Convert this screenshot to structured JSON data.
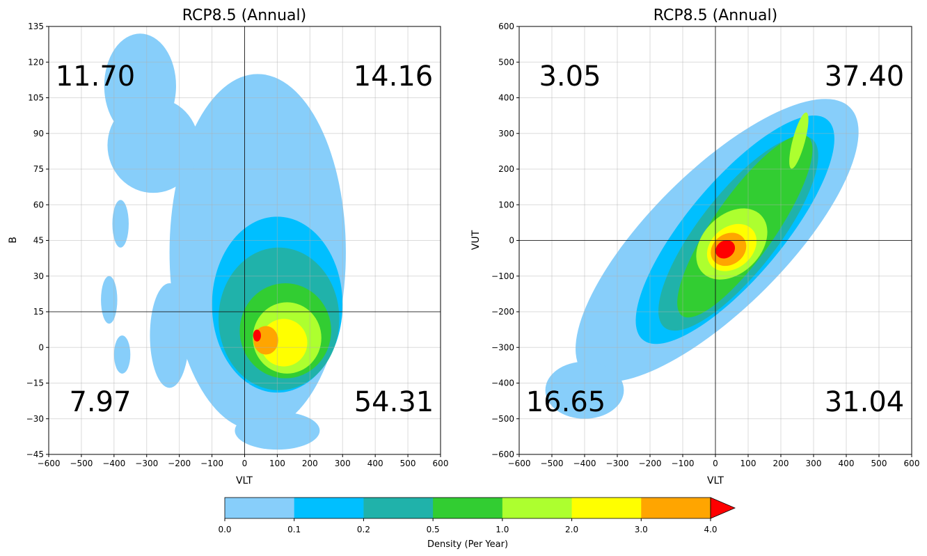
{
  "chart_data": [
    {
      "type": "heatmap",
      "title": "RCP8.5 (Annual)",
      "xlabel": "VLT",
      "ylabel": "B",
      "xlim": [
        -600,
        600
      ],
      "ylim": [
        -45,
        135
      ],
      "x_ticks": [
        -600,
        -500,
        -400,
        -300,
        -200,
        -100,
        0,
        100,
        200,
        300,
        400,
        500,
        600
      ],
      "y_ticks": [
        -45,
        -30,
        -15,
        0,
        15,
        30,
        45,
        60,
        75,
        90,
        105,
        120,
        135
      ],
      "grid": true,
      "reference_lines": {
        "x": 0,
        "y": 15
      },
      "quadrant_values": {
        "top_left": "11.70",
        "top_right": "14.16",
        "bottom_left": "7.97",
        "bottom_right": "54.31"
      },
      "density_contours": [
        {
          "level": 0.0,
          "color": "#87cefa",
          "blobs": [
            {
              "center": [
                40,
                40
              ],
              "radius": [
                270,
                75
              ]
            },
            {
              "center": [
                -320,
                110
              ],
              "radius": [
                110,
                22
              ]
            },
            {
              "center": [
                -280,
                85
              ],
              "radius": [
                140,
                20
              ]
            },
            {
              "center": [
                -230,
                5
              ],
              "radius": [
                60,
                22
              ]
            },
            {
              "center": [
                -415,
                20
              ],
              "radius": [
                25,
                10
              ]
            },
            {
              "center": [
                -380,
                52
              ],
              "radius": [
                25,
                10
              ]
            },
            {
              "center": [
                -375,
                -3
              ],
              "radius": [
                25,
                8
              ]
            },
            {
              "center": [
                100,
                -35
              ],
              "radius": [
                130,
                8
              ]
            }
          ]
        },
        {
          "level": 0.1,
          "color": "#00bfff",
          "blobs": [
            {
              "center": [
                100,
                18
              ],
              "radius": [
                200,
                37
              ]
            }
          ]
        },
        {
          "level": 0.2,
          "color": "#20b2aa",
          "blobs": [
            {
              "center": [
                105,
                12
              ],
              "radius": [
                185,
                30
              ]
            }
          ]
        },
        {
          "level": 0.5,
          "color": "#32cd32",
          "blobs": [
            {
              "center": [
                125,
                7
              ],
              "radius": [
                140,
                20
              ]
            }
          ]
        },
        {
          "level": 1.0,
          "color": "#adff2f",
          "blobs": [
            {
              "center": [
                130,
                4
              ],
              "radius": [
                105,
                15
              ]
            }
          ]
        },
        {
          "level": 2.0,
          "color": "#ffff00",
          "blobs": [
            {
              "center": [
                120,
                2
              ],
              "radius": [
                72,
                10
              ]
            }
          ]
        },
        {
          "level": 3.0,
          "color": "#ffa500",
          "blobs": [
            {
              "center": [
                65,
                3
              ],
              "radius": [
                38,
                6
              ]
            }
          ]
        },
        {
          "level": 4.0,
          "color": "#ff0000",
          "blobs": [
            {
              "center": [
                38,
                5
              ],
              "radius": [
                12,
                2.5
              ]
            }
          ]
        }
      ]
    },
    {
      "type": "heatmap",
      "title": "RCP8.5 (Annual)",
      "xlabel": "VLT",
      "ylabel": "VUT",
      "xlim": [
        -600,
        600
      ],
      "ylim": [
        -600,
        600
      ],
      "x_ticks": [
        -600,
        -500,
        -400,
        -300,
        -200,
        -100,
        0,
        100,
        200,
        300,
        400,
        500,
        600
      ],
      "y_ticks": [
        -600,
        -500,
        -400,
        -300,
        -200,
        -100,
        0,
        100,
        200,
        300,
        400,
        500,
        600
      ],
      "grid": true,
      "reference_lines": {
        "x": 0,
        "y": 0
      },
      "quadrant_values": {
        "top_left": "3.05",
        "top_right": "37.40",
        "bottom_left": "16.65",
        "bottom_right": "31.04"
      },
      "density_contours": [
        {
          "level": 0.0,
          "color": "#87cefa",
          "blobs": [
            {
              "center": [
                5,
                0
              ],
              "radius": [
                200,
                550
              ],
              "angle": 45
            },
            {
              "center": [
                -400,
                -420
              ],
              "radius": [
                120,
                80
              ]
            }
          ]
        },
        {
          "level": 0.1,
          "color": "#00bfff",
          "blobs": [
            {
              "center": [
                60,
                30
              ],
              "radius": [
                140,
                420
              ],
              "angle": 40
            }
          ]
        },
        {
          "level": 0.2,
          "color": "#20b2aa",
          "blobs": [
            {
              "center": [
                70,
                20
              ],
              "radius": [
                115,
                350
              ],
              "angle": 38
            }
          ]
        },
        {
          "level": 0.5,
          "color": "#32cd32",
          "blobs": [
            {
              "center": [
                90,
                40
              ],
              "radius": [
                90,
                320
              ],
              "angle": 35
            }
          ]
        },
        {
          "level": 1.0,
          "color": "#adff2f",
          "blobs": [
            {
              "center": [
                50,
                -10
              ],
              "radius": [
                85,
                120
              ],
              "angle": 45
            },
            {
              "center": [
                255,
                280
              ],
              "radius": [
                18,
                85
              ],
              "angle": 15
            }
          ]
        },
        {
          "level": 2.0,
          "color": "#ffff00",
          "blobs": [
            {
              "center": [
                50,
                -20
              ],
              "radius": [
                60,
                80
              ],
              "angle": 50
            }
          ]
        },
        {
          "level": 3.0,
          "color": "#ffa500",
          "blobs": [
            {
              "center": [
                40,
                -25
              ],
              "radius": [
                45,
                55
              ],
              "angle": 55
            }
          ]
        },
        {
          "level": 4.0,
          "color": "#ff0000",
          "blobs": [
            {
              "center": [
                30,
                -25
              ],
              "radius": [
                25,
                30
              ],
              "angle": 55
            }
          ]
        }
      ]
    }
  ],
  "colorbar": {
    "label": "Density (Per Year)",
    "tick_labels": [
      "0.0",
      "0.1",
      "0.2",
      "0.5",
      "1.0",
      "2.0",
      "3.0",
      "4.0"
    ],
    "colors": [
      "#87cefa",
      "#00bfff",
      "#20b2aa",
      "#32cd32",
      "#adff2f",
      "#ffff00",
      "#ffa500"
    ],
    "extend_color": "#ff0000"
  }
}
